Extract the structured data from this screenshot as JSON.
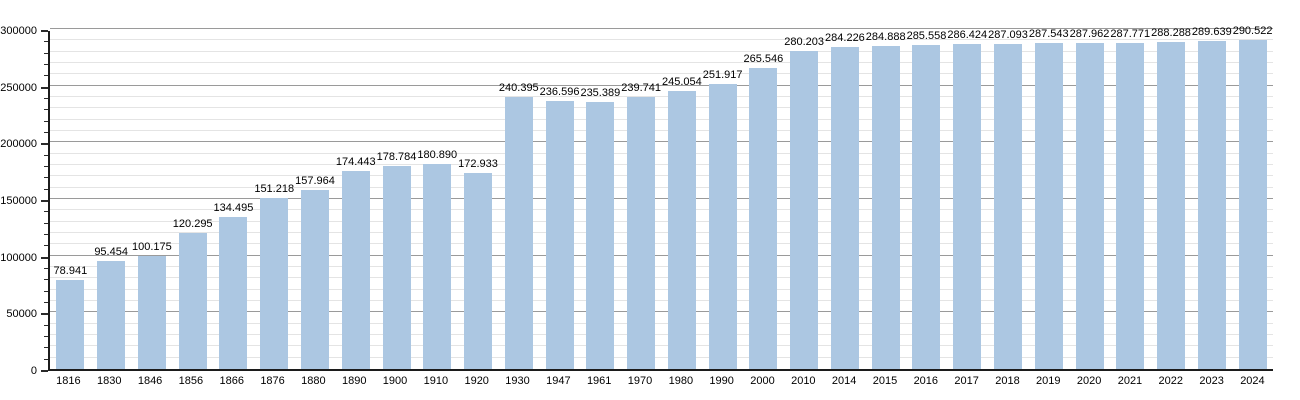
{
  "chart_data": {
    "type": "bar",
    "categories": [
      "1816",
      "1830",
      "1846",
      "1856",
      "1866",
      "1876",
      "1880",
      "1890",
      "1900",
      "1910",
      "1920",
      "1930",
      "1947",
      "1961",
      "1970",
      "1980",
      "1990",
      "2000",
      "2010",
      "2014",
      "2015",
      "2016",
      "2017",
      "2018",
      "2019",
      "2020",
      "2021",
      "2022",
      "2023",
      "2024"
    ],
    "values": [
      78941,
      95454,
      100175,
      120295,
      134495,
      151218,
      157964,
      174443,
      178784,
      180890,
      172933,
      240395,
      236596,
      235389,
      239741,
      245054,
      251917,
      265546,
      280203,
      284226,
      284888,
      285558,
      286424,
      287093,
      287543,
      287962,
      287771,
      288288,
      289639,
      290522
    ],
    "value_labels": [
      "78.941",
      "95.454",
      "100.175",
      "120.295",
      "134.495",
      "151.218",
      "157.964",
      "174.443",
      "178.784",
      "180.890",
      "172.933",
      "240.395",
      "236.596",
      "235.389",
      "239.741",
      "245.054",
      "251.917",
      "265.546",
      "280.203",
      "284.226",
      "284.888",
      "285.558",
      "286.424",
      "287.093",
      "287.543",
      "287.962",
      "287.771",
      "288.288",
      "289.639",
      "290.522"
    ],
    "xlabel": "",
    "ylabel": "",
    "ylim": [
      0,
      300000
    ],
    "y_ticks": [
      0,
      50000,
      100000,
      150000,
      200000,
      250000,
      300000
    ],
    "y_tick_labels": [
      "0",
      "50000",
      "100000",
      "150000",
      "200000",
      "250000",
      "300000"
    ],
    "grid": {
      "on": true,
      "minor_step": 10000,
      "major_step": 50000
    },
    "legend": "none",
    "bar_value_labels_shown": true,
    "colors": {
      "bar_fill": "#acc7e2",
      "gridline_minor": "#e4e4e4",
      "gridline_major": "#9a9a9a",
      "axis": "#1c1c1c",
      "text": "#000000",
      "background": "#ffffff"
    }
  }
}
